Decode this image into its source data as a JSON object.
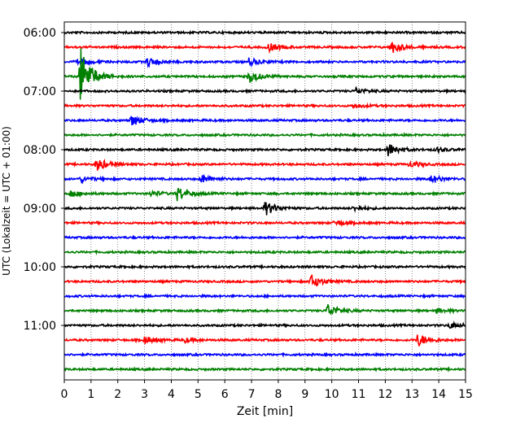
{
  "chart_data": {
    "type": "line",
    "title": "",
    "xlabel": "Zeit  [min]",
    "ylabel": "UTC (Lokalzeit = UTC + 01:00)",
    "xlim": [
      0,
      15
    ],
    "x_ticks": [
      "0",
      "1",
      "2",
      "3",
      "4",
      "5",
      "6",
      "7",
      "8",
      "9",
      "10",
      "11",
      "12",
      "13",
      "14",
      "15"
    ],
    "y_ticks": [
      "06:00",
      "07:00",
      "08:00",
      "09:00",
      "10:00",
      "11:00"
    ],
    "grid": "vertical dotted",
    "trace_interval_minutes": 15,
    "colors": [
      "#000000",
      "#ff0000",
      "#0000ff",
      "#008000"
    ],
    "series": [
      {
        "start_utc": "06:00",
        "color": "#000000",
        "events": []
      },
      {
        "start_utc": "06:15",
        "color": "#ff0000",
        "events": [
          [
            7.6,
            0.6
          ],
          [
            12.2,
            0.9
          ]
        ]
      },
      {
        "start_utc": "06:30",
        "color": "#0000ff",
        "events": [
          [
            0.5,
            0.5
          ],
          [
            3.1,
            0.6
          ],
          [
            6.9,
            0.5
          ]
        ]
      },
      {
        "start_utc": "06:45",
        "color": "#008000",
        "events": [
          [
            0.6,
            4.0
          ],
          [
            6.9,
            0.9
          ]
        ]
      },
      {
        "start_utc": "07:00",
        "color": "#000000",
        "events": [
          [
            10.9,
            0.4
          ]
        ]
      },
      {
        "start_utc": "07:15",
        "color": "#ff0000",
        "events": [
          [
            10.8,
            0.3
          ]
        ]
      },
      {
        "start_utc": "07:30",
        "color": "#0000ff",
        "events": [
          [
            2.5,
            0.8
          ]
        ]
      },
      {
        "start_utc": "07:45",
        "color": "#008000",
        "events": []
      },
      {
        "start_utc": "08:00",
        "color": "#000000",
        "events": [
          [
            12.1,
            0.9
          ],
          [
            13.9,
            0.3
          ]
        ]
      },
      {
        "start_utc": "08:15",
        "color": "#ff0000",
        "events": [
          [
            1.2,
            0.9
          ],
          [
            12.9,
            0.4
          ]
        ]
      },
      {
        "start_utc": "08:30",
        "color": "#0000ff",
        "events": [
          [
            0.6,
            0.4
          ],
          [
            5.1,
            0.6
          ],
          [
            13.7,
            0.6
          ]
        ]
      },
      {
        "start_utc": "08:45",
        "color": "#008000",
        "events": [
          [
            0.2,
            0.5
          ],
          [
            3.2,
            0.4
          ],
          [
            4.2,
            1.0
          ]
        ]
      },
      {
        "start_utc": "09:00",
        "color": "#000000",
        "events": [
          [
            7.5,
            1.0
          ],
          [
            10.8,
            0.3
          ]
        ]
      },
      {
        "start_utc": "09:15",
        "color": "#ff0000",
        "events": [
          [
            10.1,
            0.4
          ]
        ]
      },
      {
        "start_utc": "09:30",
        "color": "#0000ff",
        "events": []
      },
      {
        "start_utc": "09:45",
        "color": "#008000",
        "events": []
      },
      {
        "start_utc": "10:00",
        "color": "#000000",
        "events": []
      },
      {
        "start_utc": "10:15",
        "color": "#ff0000",
        "events": [
          [
            9.2,
            1.0
          ]
        ]
      },
      {
        "start_utc": "10:30",
        "color": "#0000ff",
        "events": []
      },
      {
        "start_utc": "10:45",
        "color": "#008000",
        "events": [
          [
            9.8,
            1.0
          ],
          [
            13.9,
            0.3
          ]
        ]
      },
      {
        "start_utc": "11:00",
        "color": "#000000",
        "events": [
          [
            14.4,
            0.4
          ]
        ]
      },
      {
        "start_utc": "11:15",
        "color": "#ff0000",
        "events": [
          [
            3.0,
            0.5
          ],
          [
            4.5,
            0.3
          ],
          [
            13.2,
            0.9
          ]
        ]
      },
      {
        "start_utc": "11:30",
        "color": "#0000ff",
        "events": []
      },
      {
        "start_utc": "11:45",
        "color": "#008000",
        "events": []
      }
    ]
  }
}
